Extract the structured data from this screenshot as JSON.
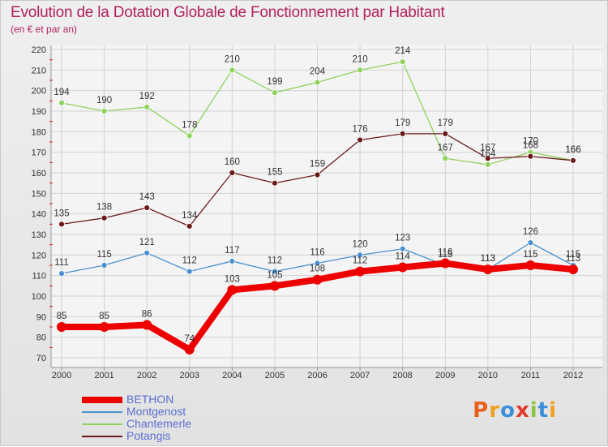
{
  "colors": {
    "title": "#b2205f",
    "legend_text": "#5a6fd0"
  },
  "chart_data": {
    "type": "line",
    "title": "Evolution de la Dotation Globale de Fonctionnement par Habitant",
    "subtitle": "(en € et par an)",
    "xlabel": "",
    "ylabel": "",
    "categories": [
      "2000",
      "2001",
      "2002",
      "2003",
      "2004",
      "2005",
      "2006",
      "2007",
      "2008",
      "2009",
      "2010",
      "2011",
      "2012"
    ],
    "ylim": [
      70,
      220
    ],
    "yticks": [
      70,
      80,
      90,
      100,
      110,
      120,
      130,
      140,
      150,
      160,
      170,
      180,
      190,
      200,
      210,
      220
    ],
    "grid": true,
    "legend_position": "bottom-left",
    "series": [
      {
        "name": "BETHON",
        "color": "#ee0000",
        "values": [
          85,
          85,
          86,
          74,
          103,
          105,
          108,
          112,
          114,
          116,
          113,
          115,
          113
        ]
      },
      {
        "name": "Montgenost",
        "color": "#4a8fcf",
        "values": [
          111,
          115,
          121,
          112,
          117,
          112,
          116,
          120,
          123,
          115,
          113,
          126,
          115
        ]
      },
      {
        "name": "Chantemerle",
        "color": "#8fd25e",
        "values": [
          194,
          190,
          192,
          178,
          210,
          199,
          204,
          210,
          214,
          167,
          164,
          170,
          166
        ]
      },
      {
        "name": "Potangis",
        "color": "#6b1a1a",
        "values": [
          135,
          138,
          143,
          134,
          160,
          155,
          159,
          176,
          179,
          179,
          167,
          168,
          166
        ]
      }
    ]
  },
  "logo": {
    "letters": [
      {
        "ch": "P",
        "color": "#e8601c"
      },
      {
        "ch": "r",
        "color": "#f0a020"
      },
      {
        "ch": "o",
        "color": "#3a8fd8"
      },
      {
        "ch": "x",
        "color": "#e03a2a"
      },
      {
        "ch": "i",
        "color": "#8cc63f"
      },
      {
        "ch": "t",
        "color": "#3a8fd8"
      },
      {
        "ch": "i",
        "color": "#f0a020"
      }
    ]
  }
}
